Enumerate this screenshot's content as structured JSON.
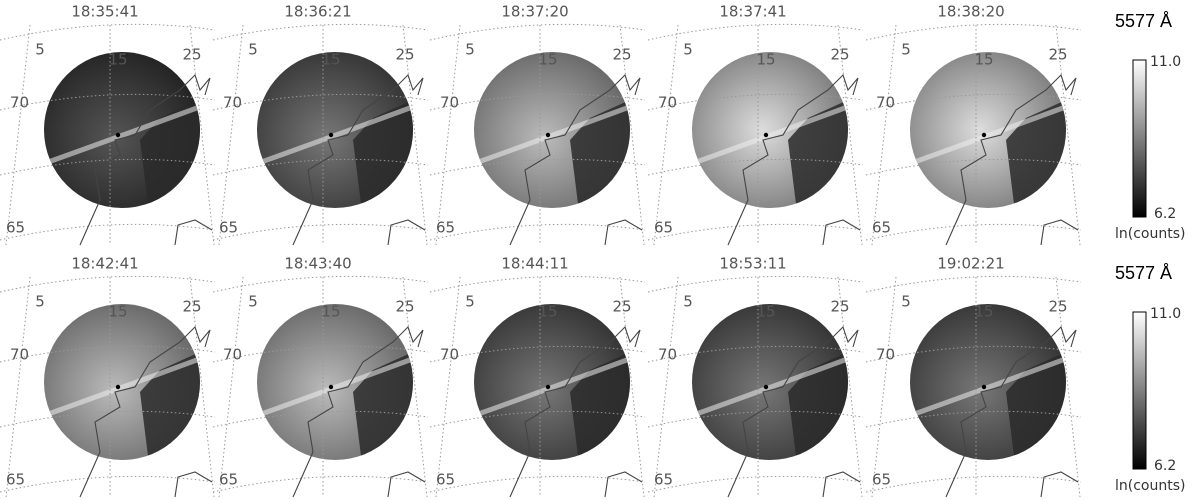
{
  "grid_labels": {
    "lon": [
      "5",
      "15",
      "25"
    ],
    "lat": [
      "70",
      "65"
    ]
  },
  "rows": [
    {
      "times": [
        "18:35:41",
        "18:36:21",
        "18:37:20",
        "18:37:41",
        "18:38:20"
      ],
      "colorbar": {
        "title": "5577 Å",
        "max": "11.0",
        "min": "6.2",
        "unit": "ln(counts)"
      }
    },
    {
      "times": [
        "18:42:41",
        "18:43:40",
        "18:44:11",
        "18:53:11",
        "19:02:21"
      ],
      "colorbar": {
        "title": "5577 Å",
        "max": "11.0",
        "min": "6.2",
        "unit": "ln(counts)"
      }
    }
  ]
}
